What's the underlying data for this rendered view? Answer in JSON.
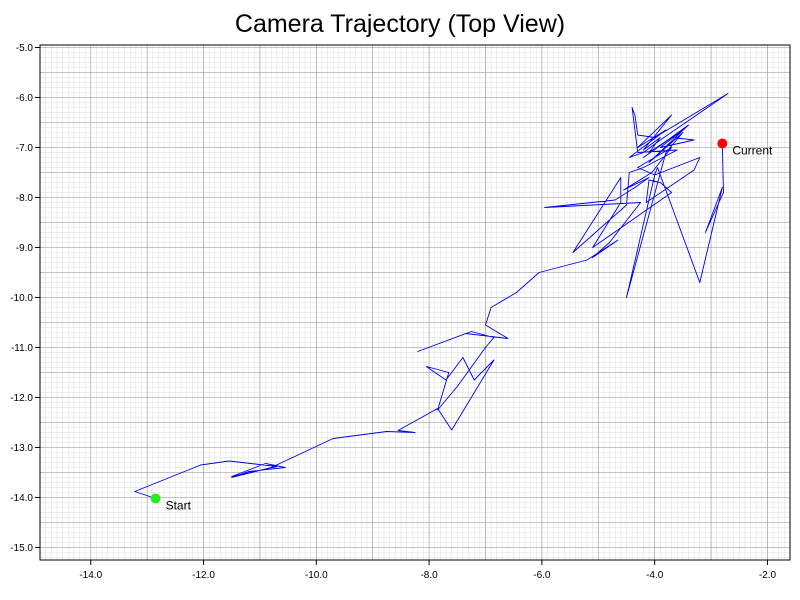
{
  "chart_data": {
    "type": "line",
    "title": "Camera Trajectory (Top View)",
    "xlabel": "",
    "ylabel": "",
    "xlim": [
      -14.9,
      -1.6
    ],
    "ylim": [
      -15.25,
      -4.95
    ],
    "x_ticks": [
      -14.0,
      -12.0,
      -10.0,
      -8.0,
      -6.0,
      -4.0,
      -2.0
    ],
    "x_tick_labels": [
      "-14.0",
      "-12.0",
      "-10.0",
      "-8.0",
      "-6.0",
      "-4.0",
      "-2.0"
    ],
    "y_ticks": [
      -5.0,
      -6.0,
      -7.0,
      -8.0,
      -9.0,
      -10.0,
      -11.0,
      -12.0,
      -13.0,
      -14.0,
      -15.0
    ],
    "y_tick_labels": [
      "-5.0",
      "-6.0",
      "-7.0",
      "-8.0",
      "-9.0",
      "-10.0",
      "-11.0",
      "-12.0",
      "-13.0",
      "-14.0",
      "-15.0"
    ],
    "grid": true,
    "colors": {
      "trajectory": "#0000ee",
      "start": "#22ee22",
      "current": "#ff0000",
      "grid_major": "#999999",
      "grid_minor": "#dddddd"
    },
    "series": [
      {
        "points": [
          [
            -12.85,
            -14.02
          ],
          [
            -13.22,
            -13.88
          ],
          [
            -12.05,
            -13.35
          ],
          [
            -11.55,
            -13.27
          ],
          [
            -10.7,
            -13.38
          ],
          [
            -11.5,
            -13.58
          ],
          [
            -10.9,
            -13.32
          ],
          [
            -10.55,
            -13.4
          ],
          [
            -11.2,
            -13.48
          ],
          [
            -11.5,
            -13.6
          ],
          [
            -10.8,
            -13.4
          ],
          [
            -9.7,
            -12.82
          ],
          [
            -8.75,
            -12.68
          ],
          [
            -8.25,
            -12.7
          ],
          [
            -8.55,
            -12.66
          ],
          [
            -7.85,
            -12.22
          ],
          [
            -7.6,
            -12.65
          ],
          [
            -6.85,
            -11.25
          ],
          [
            -7.2,
            -11.65
          ],
          [
            -7.4,
            -11.2
          ],
          [
            -7.7,
            -11.65
          ],
          [
            -8.05,
            -11.38
          ],
          [
            -7.65,
            -11.5
          ],
          [
            -7.85,
            -12.25
          ],
          [
            -7.5,
            -11.78
          ],
          [
            -7.0,
            -11.0
          ],
          [
            -6.85,
            -10.8
          ],
          [
            -7.25,
            -10.68
          ],
          [
            -8.2,
            -11.08
          ],
          [
            -7.35,
            -10.72
          ],
          [
            -6.6,
            -10.82
          ],
          [
            -7.0,
            -10.55
          ],
          [
            -6.9,
            -10.2
          ],
          [
            -6.45,
            -9.9
          ],
          [
            -6.05,
            -9.5
          ],
          [
            -5.2,
            -9.25
          ],
          [
            -4.65,
            -8.85
          ],
          [
            -5.1,
            -9.2
          ],
          [
            -4.8,
            -8.9
          ],
          [
            -4.25,
            -8.1
          ],
          [
            -5.95,
            -8.2
          ],
          [
            -4.7,
            -8.05
          ],
          [
            -4.35,
            -7.8
          ],
          [
            -4.1,
            -7.6
          ],
          [
            -4.55,
            -7.85
          ],
          [
            -4.05,
            -7.5
          ],
          [
            -3.7,
            -7.0
          ],
          [
            -4.3,
            -7.4
          ],
          [
            -4.0,
            -7.55
          ],
          [
            -4.5,
            -10.0
          ],
          [
            -3.8,
            -7.1
          ],
          [
            -3.5,
            -6.7
          ],
          [
            -4.1,
            -7.3
          ],
          [
            -3.4,
            -6.55
          ],
          [
            -4.2,
            -7.2
          ],
          [
            -3.7,
            -6.8
          ],
          [
            -3.3,
            -6.85
          ],
          [
            -3.9,
            -7.0
          ],
          [
            -3.5,
            -6.65
          ],
          [
            -4.1,
            -7.1
          ],
          [
            -3.9,
            -6.8
          ],
          [
            -4.2,
            -7.05
          ],
          [
            -3.7,
            -6.35
          ],
          [
            -4.3,
            -7.0
          ],
          [
            -3.8,
            -6.65
          ],
          [
            -4.45,
            -7.2
          ],
          [
            -4.2,
            -7.1
          ],
          [
            -3.9,
            -6.85
          ],
          [
            -2.7,
            -5.92
          ],
          [
            -4.0,
            -6.8
          ],
          [
            -4.3,
            -6.75
          ],
          [
            -4.35,
            -6.35
          ],
          [
            -4.4,
            -6.2
          ],
          [
            -4.3,
            -7.1
          ],
          [
            -3.6,
            -7.05
          ],
          [
            -4.2,
            -7.4
          ],
          [
            -4.45,
            -7.5
          ],
          [
            -4.5,
            -8.15
          ],
          [
            -5.45,
            -9.1
          ],
          [
            -4.6,
            -7.6
          ],
          [
            -4.6,
            -8.1
          ],
          [
            -5.1,
            -9.0
          ],
          [
            -3.7,
            -7.9
          ],
          [
            -3.9,
            -7.7
          ],
          [
            -4.1,
            -7.65
          ],
          [
            -4.15,
            -8.1
          ],
          [
            -3.3,
            -7.45
          ],
          [
            -3.2,
            -7.2
          ],
          [
            -4.0,
            -7.55
          ],
          [
            -3.95,
            -7.4
          ],
          [
            -3.2,
            -9.7
          ],
          [
            -2.8,
            -7.8
          ],
          [
            -3.1,
            -8.7
          ],
          [
            -2.78,
            -7.9
          ],
          [
            -2.8,
            -6.92
          ]
        ]
      }
    ],
    "markers": [
      {
        "label": "Start",
        "x": -12.85,
        "y": -14.02
      },
      {
        "label": "Current",
        "x": -2.8,
        "y": -6.92
      }
    ]
  }
}
